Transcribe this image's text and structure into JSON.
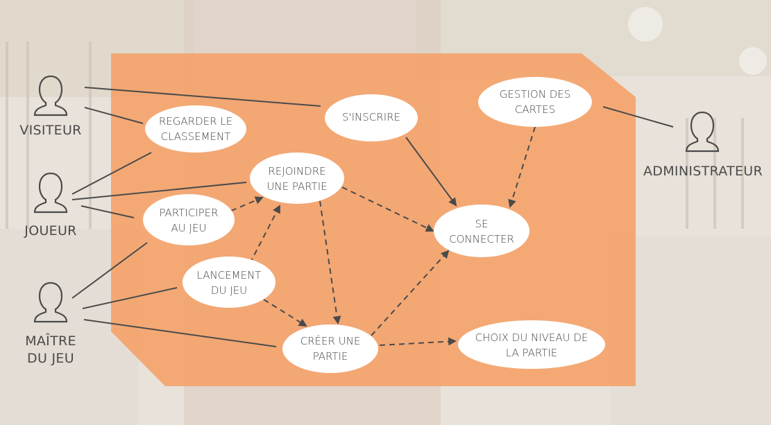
{
  "actors": {
    "visiteur": "VISITEUR",
    "joueur": "JOUEUR",
    "maitre": "MAÎTRE\nDU JEU",
    "administrateur": "ADMINISTRATEUR"
  },
  "use_cases": {
    "regarder_classement": "REGARDER LE\nCLASSEMENT",
    "sinscrire": "S'INSCRIRE",
    "gestion_cartes": "GESTION DES\nCARTES",
    "rejoindre_partie": "REJOINDRE\nUNE PARTIE",
    "participer_jeu": "PARTICIPER\nAU JEU",
    "se_connecter": "SE\nCONNECTER",
    "lancement_jeu": "LANCEMENT\nDU JEU",
    "creer_partie": "CRÉER UNE\nPARTIE",
    "choix_niveau": "CHOIX DU NIVEAU DE\nLA PARTIE"
  },
  "colors": {
    "panel": "#f5a066",
    "ellipse": "#ffffff",
    "line": "#4a4a4a",
    "actor": "#4a4a4a"
  }
}
